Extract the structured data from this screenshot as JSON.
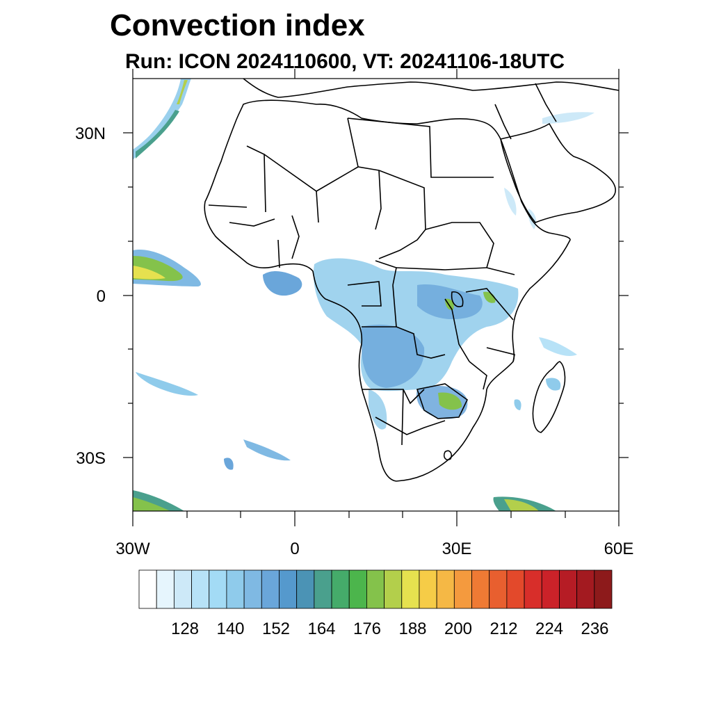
{
  "title": "Convection index",
  "subtitle": "Run: ICON 2024110600,  VT: 20241106-18UTC",
  "axes": {
    "lat_labels": [
      "30N",
      "0",
      "30S"
    ],
    "lon_labels": [
      "30W",
      "0",
      "30E",
      "60E"
    ]
  },
  "colorbar": {
    "labels": [
      "128",
      "140",
      "152",
      "164",
      "176",
      "188",
      "200",
      "212",
      "224",
      "236"
    ],
    "colors": [
      "#ffffff",
      "#e6f5fd",
      "#cde9f8",
      "#b7e2f7",
      "#a3dbf5",
      "#8fcbeb",
      "#7fb9e3",
      "#6aa6da",
      "#5599cd",
      "#4b93b5",
      "#4aa08d",
      "#45ab6a",
      "#4cb54c",
      "#84c24b",
      "#b3cf4b",
      "#e6e14f",
      "#f6cc47",
      "#f5b845",
      "#f49a3e",
      "#ef7a34",
      "#e85f2f",
      "#e3492b",
      "#d82e2a",
      "#cb2229",
      "#b61c25",
      "#a31a20",
      "#8d1a1b"
    ]
  },
  "map_region": "Africa, 30W to 60E, 40S to 40N"
}
